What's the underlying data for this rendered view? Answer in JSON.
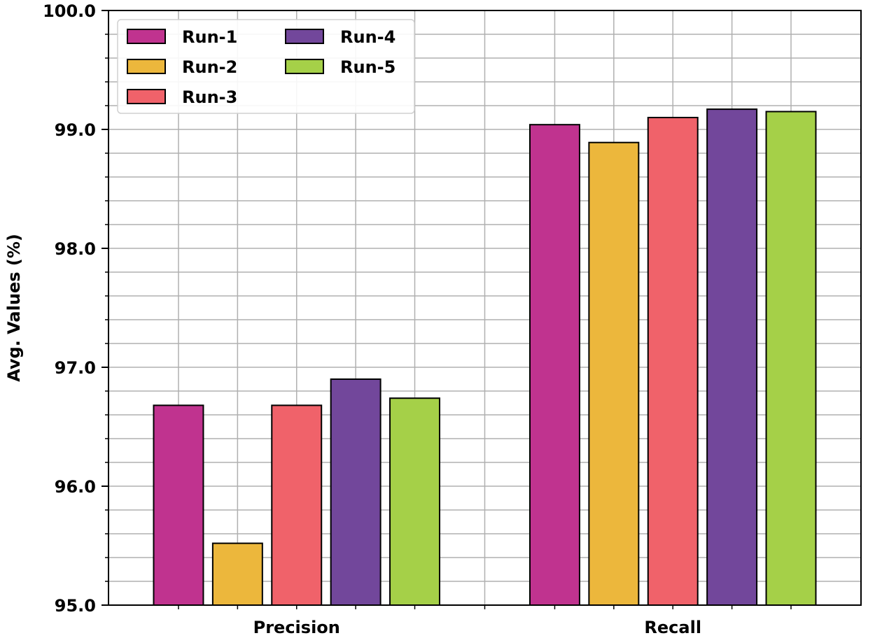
{
  "chart_data": {
    "type": "bar",
    "title": "",
    "xlabel": "",
    "ylabel": "Avg. Values (%)",
    "categories": [
      "Precision",
      "Recall"
    ],
    "ylim": [
      95.0,
      100.0
    ],
    "yticks": [
      95.0,
      96.0,
      97.0,
      98.0,
      99.0,
      100.0
    ],
    "ytick_labels": [
      "95.0",
      "96.0",
      "97.0",
      "98.0",
      "99.0",
      "100.0"
    ],
    "grid": true,
    "legend_position": "top-left",
    "legend_columns": 2,
    "series": [
      {
        "name": "Run-1",
        "color": "#c0338f",
        "values": [
          96.68,
          99.04
        ]
      },
      {
        "name": "Run-2",
        "color": "#ecb73c",
        "values": [
          95.52,
          98.89
        ]
      },
      {
        "name": "Run-3",
        "color": "#f0626a",
        "values": [
          96.68,
          99.1
        ]
      },
      {
        "name": "Run-4",
        "color": "#72479b",
        "values": [
          96.9,
          99.17
        ]
      },
      {
        "name": "Run-5",
        "color": "#a5d048",
        "values": [
          96.74,
          99.15
        ]
      }
    ]
  }
}
